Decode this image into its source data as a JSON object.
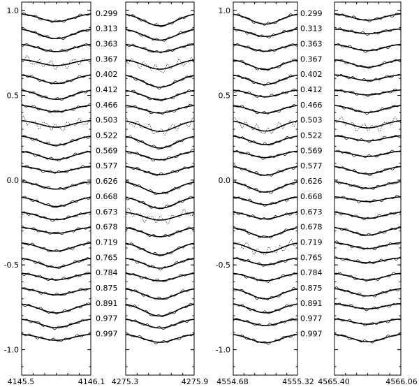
{
  "chart_data": {
    "type": "line",
    "title": "",
    "ylim": [
      -1.15,
      1.05
    ],
    "y_ticks": [
      {
        "value": 1.0,
        "label": "1.0"
      },
      {
        "value": 0.5,
        "label": "0.5"
      },
      {
        "value": 0.0,
        "label": "0.0"
      },
      {
        "value": -0.5,
        "label": "-0.5"
      },
      {
        "value": -1.0,
        "label": "-1.0"
      }
    ],
    "phases": [
      "0.299",
      "0.313",
      "0.363",
      "0.367",
      "0.402",
      "0.412",
      "0.466",
      "0.503",
      "0.522",
      "0.569",
      "0.577",
      "0.626",
      "0.668",
      "0.673",
      "0.678",
      "0.719",
      "0.765",
      "0.784",
      "0.875",
      "0.891",
      "0.977",
      "0.997"
    ],
    "panels": [
      {
        "name": "line-4145.5-4146.1",
        "x_left_label": "4145.5",
        "x_right_label": "4146.1",
        "x_range": [
          4145.5,
          4146.1
        ],
        "depth": 0.055,
        "dotted_phases": [
          "0.367",
          "0.503"
        ]
      },
      {
        "name": "line-4275.3-4275.9",
        "x_left_label": "4275.3",
        "x_right_label": "4275.9",
        "x_range": [
          4275.3,
          4275.9
        ],
        "depth": 0.07,
        "dotted_phases": [
          "0.367",
          "0.503",
          "0.673"
        ]
      },
      {
        "name": "line-4554.68-4555.32",
        "x_left_label": "4554.68",
        "x_right_label": "4555.32",
        "x_range": [
          4554.68,
          4555.32
        ],
        "depth": 0.06,
        "dotted_phases": [
          "0.503",
          "0.719"
        ]
      },
      {
        "name": "line-4565.40-4566.06",
        "x_left_label": "4565.40",
        "x_right_label": "4566.06",
        "x_range": [
          4565.4,
          4566.06
        ],
        "depth": 0.045,
        "dotted_phases": [
          "0.503"
        ]
      }
    ]
  }
}
